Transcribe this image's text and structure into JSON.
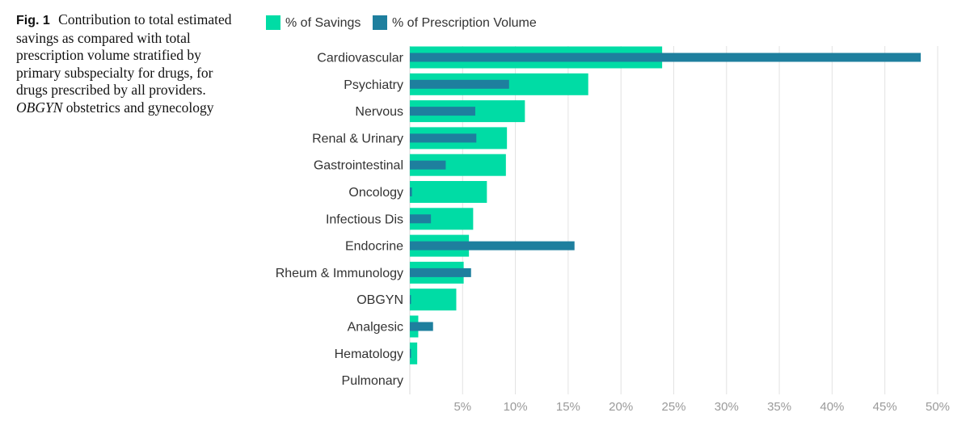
{
  "caption": {
    "fig_label": "Fig. 1",
    "text_main": "Contribution to total estimated savings as compared with total prescription volume stratified by primary subspecialty for drugs, for drugs prescribed by all providers.",
    "abbr": "OBGYN",
    "abbr_def": "obstetrics and gynecology"
  },
  "chart_data": {
    "type": "bar",
    "orientation": "horizontal",
    "legend_placement": "top",
    "grid": true,
    "xlim": [
      0,
      50
    ],
    "x_ticks": [
      "5%",
      "10%",
      "15%",
      "20%",
      "25%",
      "30%",
      "35%",
      "40%",
      "45%",
      "50%"
    ],
    "categories": [
      "Cardiovascular",
      "Psychiatry",
      "Nervous",
      "Renal & Urinary",
      "Gastrointestinal",
      "Oncology",
      "Infectious Dis",
      "Endocrine",
      "Rheum & Immunology",
      "OBGYN",
      "Analgesic",
      "Hematology",
      "Pulmonary"
    ],
    "series": [
      {
        "name": "% of Savings",
        "color": "#00dca5",
        "values": [
          23.9,
          16.9,
          10.9,
          9.2,
          9.1,
          7.3,
          6.0,
          5.6,
          5.1,
          4.4,
          0.8,
          0.7,
          0.0
        ]
      },
      {
        "name": "% of Prescription Volume",
        "color": "#1e7f9e",
        "values": [
          48.4,
          9.4,
          6.2,
          6.3,
          3.4,
          0.2,
          2.0,
          15.6,
          5.8,
          0.1,
          2.2,
          0.1,
          0.0
        ]
      }
    ]
  }
}
